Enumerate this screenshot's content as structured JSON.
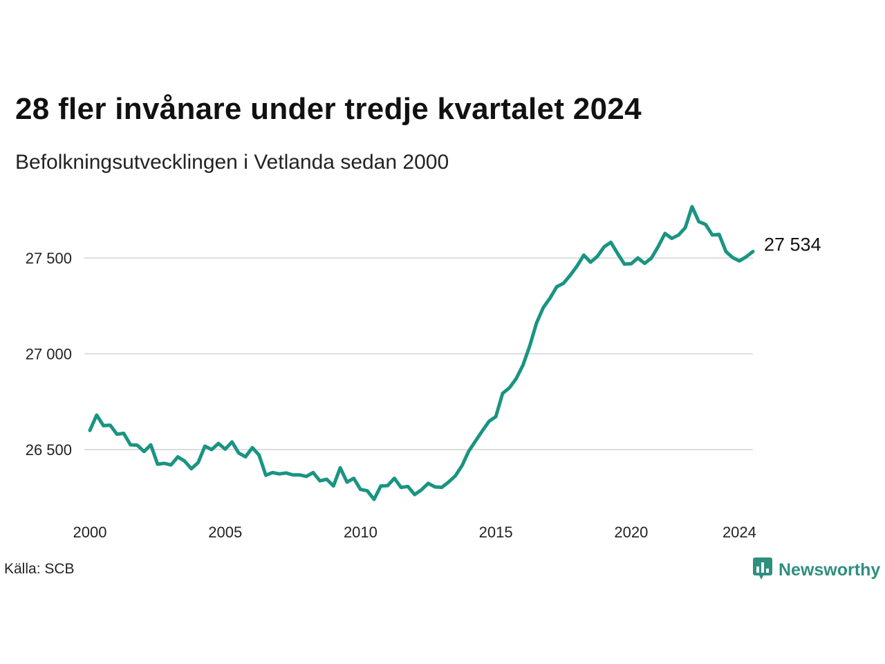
{
  "header": {
    "title": "28 fler invånare under tredje kvartalet 2024",
    "subtitle": "Befolkningsutvecklingen i Vetlanda sedan 2000"
  },
  "footer": {
    "source": "Källa: SCB",
    "brand": "Newsworthy",
    "brand_icon": "newsworthy-logo-icon"
  },
  "colors": {
    "line": "#1a9482",
    "grid": "#dddddd",
    "text": "#111111",
    "brand": "#2f8f7f"
  },
  "chart_data": {
    "type": "line",
    "title": "28 fler invånare under tredje kvartalet 2024",
    "subtitle": "Befolkningsutvecklingen i Vetlanda sedan 2000",
    "xlabel": "",
    "ylabel": "",
    "x_ticks": [
      2000,
      2005,
      2010,
      2015,
      2020,
      2024
    ],
    "y_ticks": [
      26500,
      27000,
      27500
    ],
    "y_tick_labels": [
      "26 500",
      "27 000",
      "27 500"
    ],
    "xlim": [
      2000,
      2024.5
    ],
    "ylim": [
      26200,
      27800
    ],
    "grid": "horizontal",
    "last_value_label": "27 534",
    "x": [
      2000.0,
      2000.25,
      2000.5,
      2000.75,
      2001.0,
      2001.25,
      2001.5,
      2001.75,
      2002.0,
      2002.25,
      2002.5,
      2002.75,
      2003.0,
      2003.25,
      2003.5,
      2003.75,
      2004.0,
      2004.25,
      2004.5,
      2004.75,
      2005.0,
      2005.25,
      2005.5,
      2005.75,
      2006.0,
      2006.25,
      2006.5,
      2006.75,
      2007.0,
      2007.25,
      2007.5,
      2007.75,
      2008.0,
      2008.25,
      2008.5,
      2008.75,
      2009.0,
      2009.25,
      2009.5,
      2009.75,
      2010.0,
      2010.25,
      2010.5,
      2010.75,
      2011.0,
      2011.25,
      2011.5,
      2011.75,
      2012.0,
      2012.25,
      2012.5,
      2012.75,
      2013.0,
      2013.25,
      2013.5,
      2013.75,
      2014.0,
      2014.25,
      2014.5,
      2014.75,
      2015.0,
      2015.25,
      2015.5,
      2015.75,
      2016.0,
      2016.25,
      2016.5,
      2016.75,
      2017.0,
      2017.25,
      2017.5,
      2017.75,
      2018.0,
      2018.25,
      2018.5,
      2018.75,
      2019.0,
      2019.25,
      2019.5,
      2019.75,
      2020.0,
      2020.25,
      2020.5,
      2020.75,
      2021.0,
      2021.25,
      2021.5,
      2021.75,
      2022.0,
      2022.25,
      2022.5,
      2022.75,
      2023.0,
      2023.25,
      2023.5,
      2023.75,
      2024.0,
      2024.25,
      2024.5
    ],
    "series": [
      {
        "values": [
          26600,
          26680,
          26625,
          26627,
          26580,
          26585,
          26525,
          26523,
          26490,
          26525,
          26424,
          26428,
          26420,
          26462,
          26440,
          26400,
          26432,
          26518,
          26500,
          26532,
          26502,
          26540,
          26482,
          26462,
          26510,
          26472,
          26366,
          26380,
          26373,
          26378,
          26368,
          26368,
          26360,
          26380,
          26337,
          26345,
          26310,
          26405,
          26330,
          26350,
          26292,
          26285,
          26240,
          26310,
          26312,
          26350,
          26302,
          26308,
          26265,
          26290,
          26324,
          26305,
          26303,
          26330,
          26362,
          26416,
          26492,
          26545,
          26598,
          26648,
          26672,
          26793,
          26822,
          26870,
          26940,
          27040,
          27160,
          27240,
          27290,
          27350,
          27368,
          27410,
          27458,
          27515,
          27478,
          27508,
          27558,
          27582,
          27523,
          27468,
          27470,
          27500,
          27472,
          27500,
          27560,
          27628,
          27602,
          27620,
          27658,
          27768,
          27690,
          27675,
          27620,
          27623,
          27534,
          27502,
          27485,
          27506,
          27534
        ]
      }
    ]
  }
}
